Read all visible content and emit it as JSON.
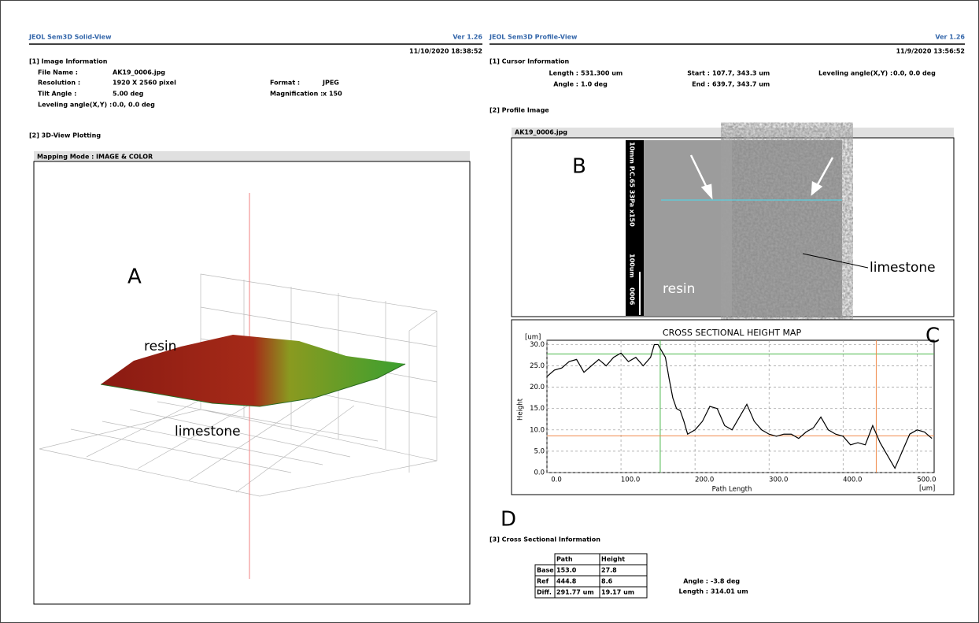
{
  "left": {
    "app": "JEOL Sem3D Solid-View",
    "version": "Ver 1.26",
    "date": "11/10/2020 18:38:52",
    "section1": "[1] Image Information",
    "info": [
      {
        "label": "File Name :",
        "value": "AK19_0006.jpg"
      },
      {
        "label": "Resolution :",
        "value": "1920 X 2560 pixel"
      },
      {
        "label": "Tilt Angle :",
        "value": "5.00 deg"
      },
      {
        "label": "Leveling angle(X,Y) :",
        "value": "0.0, 0.0 deg"
      }
    ],
    "info2": [
      {
        "label": "Format :",
        "value": "JPEG"
      },
      {
        "label": "Magnification :",
        "value": "x 150"
      }
    ],
    "section2": "[2] 3D-View Plotting",
    "mapping_label": "Mapping Mode :",
    "mapping_value": "IMAGE & COLOR",
    "panel_label": "A",
    "resin": "resin",
    "limestone": "limestone"
  },
  "right": {
    "app": "JEOL Sem3D Profile-View",
    "version": "Ver 1.26",
    "date": "11/9/2020 13:56:52",
    "section1": "[1] Cursor Information",
    "cursor": [
      {
        "label": "Length :",
        "value": "531.300 um"
      },
      {
        "label": "Angle :",
        "value": "1.0 deg"
      },
      {
        "label": "Start :",
        "value": "107.7, 343.3 um"
      },
      {
        "label": "End :",
        "value": "639.7, 343.7 um"
      },
      {
        "label": "Leveling angle(X,Y) :",
        "value": "0.0, 0.0 deg"
      }
    ],
    "section2": "[2] Profile Image",
    "image_name": "AK19_0006.jpg",
    "panel_label": "B",
    "image_caption": [
      "10mm P.C.65  33Pa  x150",
      "100um",
      "0006"
    ],
    "resin": "resin",
    "limestone": "limestone",
    "panel_c": "C",
    "panel_d": "D",
    "section3": "[3] Cross Sectional Information",
    "table": {
      "header": [
        "Path",
        "Height"
      ],
      "rows": [
        [
          "Base",
          "153.0",
          "27.8"
        ],
        [
          "Ref",
          "444.8",
          "8.6"
        ],
        [
          "Diff.",
          "291.77 um",
          "19.17 um"
        ]
      ]
    },
    "extra": [
      {
        "label": "Angle :",
        "value": "-3.8 deg"
      },
      {
        "label": "Length :",
        "value": "314.01 um"
      }
    ]
  },
  "chart_data": {
    "type": "line",
    "title": "CROSS SECTIONAL HEIGHT MAP",
    "y_unit": "[um]",
    "ylabel": "Height",
    "xlabel": "Path Length",
    "x_unit": "[um]",
    "x": [
      0,
      10,
      20,
      30,
      40,
      50,
      60,
      70,
      80,
      90,
      100,
      110,
      120,
      130,
      140,
      145,
      150,
      160,
      165,
      170,
      175,
      180,
      185,
      190,
      200,
      210,
      220,
      230,
      240,
      250,
      260,
      270,
      280,
      290,
      300,
      310,
      320,
      330,
      340,
      350,
      360,
      370,
      380,
      390,
      400,
      410,
      420,
      430,
      440,
      450,
      460,
      470,
      480,
      490,
      500,
      510,
      520
    ],
    "values": [
      22.5,
      24,
      24.5,
      26,
      26.5,
      23.5,
      25,
      26.5,
      25,
      27,
      28,
      26,
      27,
      25,
      27,
      30,
      30,
      27,
      22,
      17.5,
      15,
      14.5,
      12,
      9,
      10,
      12,
      15.5,
      15,
      11,
      10,
      13,
      16,
      12,
      10,
      9,
      8.5,
      9,
      9,
      8,
      9.5,
      10.5,
      13,
      10,
      9,
      8.5,
      6.5,
      7,
      6.5,
      11,
      7,
      4,
      1,
      5,
      9,
      10,
      9.5,
      8
    ],
    "color": "#000000",
    "xlim": [
      0,
      523
    ],
    "ylim": [
      0,
      31
    ],
    "grid": true,
    "xticks": [
      {
        "value": 0,
        "label": "0.0"
      },
      {
        "value": 100,
        "label": "100.0"
      },
      {
        "value": 200,
        "label": "200.0"
      },
      {
        "value": 300,
        "label": "300.0"
      },
      {
        "value": 400,
        "label": "400.0"
      },
      {
        "value": 500,
        "label": "500.0"
      }
    ],
    "yticks": [
      {
        "value": 0,
        "label": "0.0"
      },
      {
        "value": 5,
        "label": "5.0"
      },
      {
        "value": 10,
        "label": "10.0"
      },
      {
        "value": 15,
        "label": "15.0"
      },
      {
        "value": 20,
        "label": "20.0"
      },
      {
        "value": 25,
        "label": "25.0"
      },
      {
        "value": 30,
        "label": "30.0"
      }
    ],
    "base_color": "#4db84d",
    "ref_color": "#f08a4b"
  }
}
